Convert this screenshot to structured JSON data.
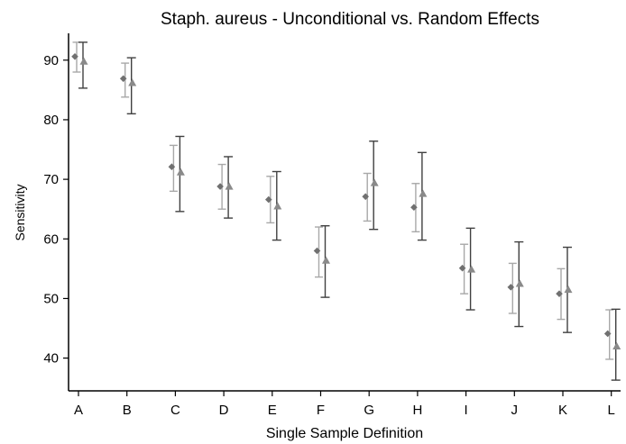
{
  "chart_data": {
    "type": "scatter",
    "title": "Staph. aureus - Unconditional vs. Random Effects",
    "xlabel": "Single Sample Definition",
    "ylabel": "Sensitivity",
    "categories": [
      "A",
      "B",
      "C",
      "D",
      "E",
      "F",
      "G",
      "H",
      "I",
      "J",
      "K",
      "L"
    ],
    "ylim": [
      34.5,
      94.5
    ],
    "yticks": [
      40,
      50,
      60,
      70,
      80,
      90
    ],
    "grid": false,
    "series": [
      {
        "marker": "diamond",
        "color": "#707070",
        "errorbar_color": "#a8a8a8",
        "values": [
          90.6,
          86.9,
          72.1,
          68.8,
          66.6,
          58.0,
          67.1,
          65.3,
          55.1,
          51.9,
          50.8,
          44.1
        ],
        "lower": [
          88.0,
          83.8,
          68.0,
          65.0,
          62.7,
          53.6,
          63.0,
          61.2,
          50.8,
          47.5,
          46.5,
          39.8
        ],
        "upper": [
          93.0,
          89.5,
          75.7,
          72.5,
          70.5,
          62.0,
          71.0,
          69.3,
          59.1,
          55.9,
          55.0,
          48.1
        ]
      },
      {
        "marker": "triangle",
        "color": "#8a8a8a",
        "errorbar_color": "#404040",
        "values": [
          89.8,
          86.2,
          71.2,
          68.8,
          65.5,
          56.4,
          69.4,
          67.6,
          54.9,
          52.5,
          51.5,
          42.0
        ],
        "lower": [
          85.3,
          81.0,
          64.6,
          63.5,
          59.8,
          50.2,
          61.6,
          59.8,
          48.1,
          45.3,
          44.3,
          36.3
        ],
        "upper": [
          93.0,
          90.4,
          77.2,
          73.8,
          71.3,
          62.2,
          76.4,
          74.5,
          61.8,
          59.5,
          58.6,
          48.2
        ]
      }
    ]
  }
}
